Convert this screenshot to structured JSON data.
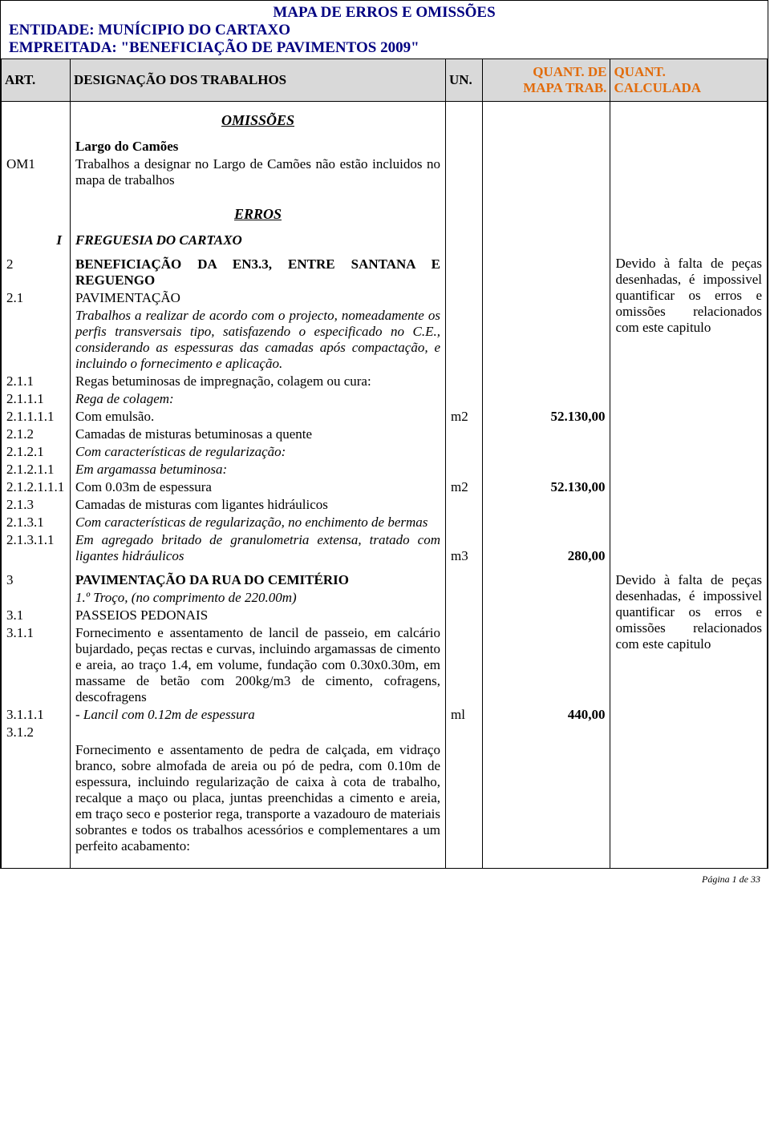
{
  "colors": {
    "header_text": "#000080",
    "header_bg": "#d9d9d9",
    "accent_header": "#e26b0a",
    "border": "#000000",
    "background": "#ffffff"
  },
  "fonts": {
    "family": "Garamond, Georgia, serif",
    "title_size_pt": 14,
    "body_size_pt": 12
  },
  "header": {
    "main_title": "MAPA DE ERROS E OMISSÕES",
    "entity": "ENTIDADE: MUNÍCIPIO DO CARTAXO",
    "job": "EMPREITADA: \"BENEFICIAÇÃO DE PAVIMENTOS 2009\""
  },
  "columns": {
    "art": "ART.",
    "des": "DESIGNAÇÃO DOS TRABALHOS",
    "un": "UN.",
    "q1_l1": "QUANT. DE",
    "q1_l2": "MAPA TRAB.",
    "q2_l1": "QUANT.",
    "q2_l2": "CALCULADA"
  },
  "sections": {
    "omissoes": "OMISSÕES",
    "erros": "ERROS"
  },
  "om1": {
    "art": "OM1",
    "title": "Largo do Camões",
    "text": "Trabalhos a designar no Largo de Camões não estão incluidos no mapa de trabalhos"
  },
  "freguesia": {
    "art": "I",
    "title": "FREGUESIA DO CARTAXO"
  },
  "sec2": {
    "art": "2",
    "title": "BENEFICIAÇÃO DA EN3.3, ENTRE SANTANA E REGUENGO",
    "r21_art": "2.1",
    "r21_text": "PAVIMENTAÇÃO",
    "desc": "Trabalhos a realizar de acordo com o projecto, nomeadamente os perfis transversais tipo, satisfazendo o especificado no C.E., considerando as espessuras das camadas após compactação, e incluindo o fornecimento e aplicação.",
    "r211_art": "2.1.1",
    "r211_text": "Regas betuminosas de impregnação, colagem ou cura:",
    "r2111_art": "2.1.1.1",
    "r2111_text": "Rega de colagem:",
    "r21111_art": "2.1.1.1.1",
    "r21111_text": "Com emulsão.",
    "r21111_un": "m2",
    "r21111_q": "52.130,00",
    "r212_art": "2.1.2",
    "r212_text": "Camadas de misturas betuminosas a quente",
    "r2121_art": "2.1.2.1",
    "r2121_text": "Com características de regularização:",
    "r21211_art": "2.1.2.1.1",
    "r21211_text": "Em argamassa betuminosa:",
    "r212111_art": "2.1.2.1.1.1",
    "r212111_text": "Com 0.03m de espessura",
    "r212111_un": "m2",
    "r212111_q": "52.130,00",
    "r213_art": "2.1.3",
    "r213_text": "Camadas de misturas com ligantes hidráulicos",
    "r2131_art": "2.1.3.1",
    "r2131_text": "Com características de regularização, no enchimento de bermas",
    "r21311_art": "2.1.3.1.1",
    "r21311_text": "Em agregado britado de granulometria extensa, tratado com ligantes hidráulicos",
    "r21311_un": "m3",
    "r21311_q": "280,00",
    "note": "Devido à falta de peças desenhadas, é impossivel quantificar os erros e omissões relacionados com este capitulo"
  },
  "sec3": {
    "art": "3",
    "title": "PAVIMENTAÇÃO DA RUA DO CEMITÉRIO",
    "sub": "1.º Troço, (no comprimento de 220.00m)",
    "r31_art": "3.1",
    "r31_text": "PASSEIOS PEDONAIS",
    "r311_art": "3.1.1",
    "r311_text": "Fornecimento e assentamento de lancil de passeio, em calcário bujardado, peças rectas e curvas, incluindo argamassas de cimento e areia, ao traço 1.4, em volume, fundação com 0.30x0.30m, em massame de betão com 200kg/m3 de cimento, cofragens, descofragens",
    "r3111_art": "3.1.1.1",
    "r3111_text": "- Lancil com 0.12m de espessura",
    "r3111_un": "ml",
    "r3111_q": "440,00",
    "r312_art": "3.1.2",
    "r312_text": "Fornecimento e assentamento de pedra de calçada, em vidraço branco, sobre almofada de areia ou pó de pedra, com 0.10m de espessura, incluindo regularização de caixa à cota de trabalho, recalque a maço ou placa, juntas preenchidas a cimento e areia, em traço seco e posterior rega, transporte a vazadouro de materiais sobrantes e todos os trabalhos acessórios e complementares a um perfeito acabamento:",
    "note": "Devido à falta de peças desenhadas, é impossivel quantificar os erros e omissões relacionados com este capitulo"
  },
  "footer": "Página 1 de 33"
}
